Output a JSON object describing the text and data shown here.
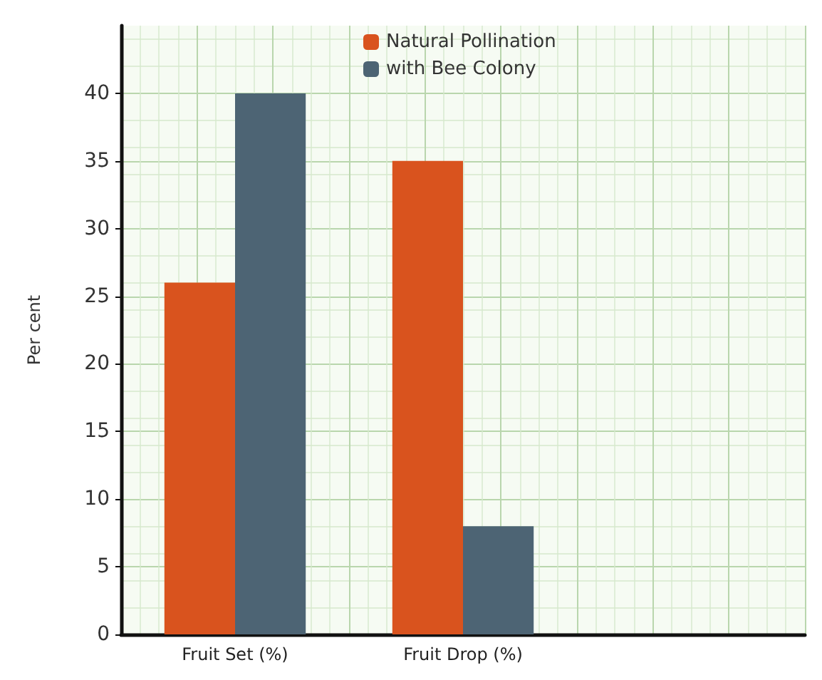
{
  "chart_data": {
    "type": "bar",
    "ylabel": "Per cent",
    "categories": [
      "Fruit Set (%)",
      "Fruit Drop (%)",
      null
    ],
    "series": [
      {
        "name": "Natural Pollination",
        "color": "#d9531e",
        "values": [
          26,
          35,
          null
        ]
      },
      {
        "name": "with Bee Colony",
        "color": "#4d6474",
        "values": [
          40,
          8,
          null
        ]
      }
    ],
    "ylim": [
      0,
      45
    ],
    "yticks": [
      0,
      5,
      10,
      15,
      20,
      25,
      30,
      35,
      40
    ],
    "grid": true,
    "legend": "top"
  }
}
